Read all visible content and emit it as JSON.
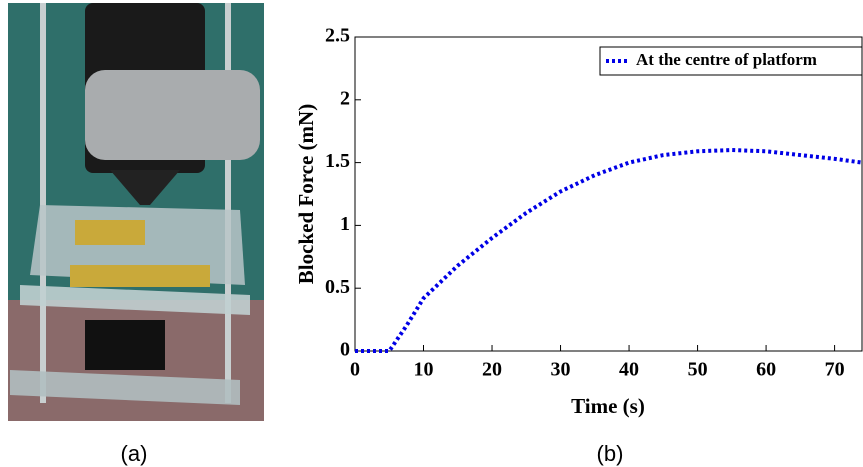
{
  "captions": [
    "(a)",
    "(b)"
  ],
  "chart_data": {
    "type": "line",
    "xlabel": "Time (s)",
    "ylabel": "Blocked Force (mN)",
    "x": [
      0,
      2,
      4,
      5,
      7.5,
      10,
      15,
      20,
      25,
      30,
      35,
      40,
      45,
      50,
      55,
      60,
      65,
      70,
      74
    ],
    "series": [
      {
        "name": "At the centre of platform",
        "color": "#0000e6",
        "values": [
          0,
          0,
          0,
          0,
          0.2,
          0.42,
          0.68,
          0.9,
          1.1,
          1.27,
          1.4,
          1.5,
          1.56,
          1.59,
          1.6,
          1.59,
          1.56,
          1.53,
          1.5
        ]
      }
    ],
    "xlim": [
      0,
      74
    ],
    "ylim": [
      0,
      2.5
    ],
    "xticks": [
      0,
      10,
      20,
      30,
      40,
      50,
      60,
      70
    ],
    "yticks": [
      0,
      0.5,
      1,
      1.5,
      2,
      2.5
    ],
    "legend": "upper right",
    "grid": false
  }
}
